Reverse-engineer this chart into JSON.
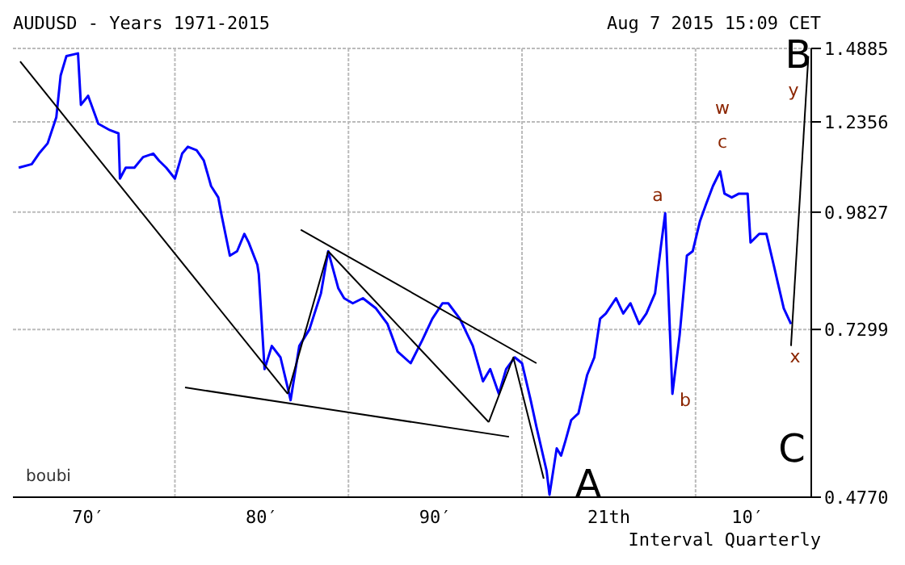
{
  "chart_data": {
    "type": "line",
    "title": "AUDUSD - Years 1971-2015",
    "subtitle": "Aug 7 2015 15:09 CET",
    "log": true,
    "grid": true,
    "marker": "none",
    "line_style": "solid",
    "xlim": [
      "1970-09",
      "2016-09"
    ],
    "xticks": [
      {
        "value": "1975",
        "label": "70′"
      },
      {
        "value": "1980",
        "label": null
      },
      {
        "value": "1985",
        "label": "80′"
      },
      {
        "value": "1990",
        "label": null
      },
      {
        "value": "1995",
        "label": "90′"
      },
      {
        "value": "2000",
        "label": null
      },
      {
        "value": "2005",
        "label": "21th"
      },
      {
        "value": "2010",
        "label": null
      },
      {
        "value": "2013",
        "label": "10′"
      }
    ],
    "ylim": [
      0.477,
      1.4885
    ],
    "yticks": [
      {
        "value": 0.477,
        "label": "0.4770"
      },
      0.7299,
      0.9827,
      1.2356,
      1.4885
    ],
    "series": [
      {
        "color": "#0000ff",
        "x": [
          "1971-01",
          "1971-10",
          "1972-03",
          "1972-09",
          "1973-03",
          "1973-06",
          "1973-10",
          "1974-06",
          "1974-08",
          "1975-01",
          "1975-08",
          "1976-04",
          "1976-10",
          "1976-11",
          "1977-03",
          "1977-09",
          "1978-03",
          "1978-10",
          "1979-02",
          "1979-07",
          "1980-01",
          "1980-06",
          "1980-10",
          "1981-04",
          "1981-09",
          "1982-02",
          "1982-07",
          "1982-09",
          "1983-03",
          "1983-08",
          "1984-01",
          "1984-04",
          "1984-10",
          "1984-11",
          "1985-03",
          "1985-08",
          "1986-02",
          "1986-08",
          "1986-09",
          "1987-03",
          "1987-10",
          "1988-06",
          "1988-11",
          "1989-06",
          "1989-10",
          "1990-04",
          "1990-11",
          "1991-08",
          "1992-04",
          "1992-11",
          "1993-08",
          "1994-04",
          "1994-11",
          "1995-06",
          "1995-10",
          "1996-06",
          "1997-03",
          "1997-10",
          "1998-03",
          "1998-09",
          "1999-02",
          "1999-08",
          "2000-01",
          "2000-07",
          "2000-11",
          "2001-06",
          "2001-08",
          "2002-01",
          "2002-04",
          "2002-07",
          "2002-11",
          "2003-04",
          "2003-10",
          "2004-03",
          "2004-07",
          "2004-11",
          "2005-06",
          "2005-11",
          "2006-04",
          "2006-10",
          "2007-03",
          "2007-09",
          "2008-01",
          "2008-04",
          "2008-09",
          "2009-02",
          "2009-07",
          "2009-11",
          "2010-04",
          "2010-08",
          "2011-01",
          "2011-06",
          "2011-09",
          "2012-02",
          "2012-07",
          "2013-01",
          "2013-03",
          "2013-09",
          "2014-02",
          "2014-07",
          "2014-10",
          "2015-02",
          "2015-07"
        ],
        "values": [
          1.1,
          1.11,
          1.14,
          1.17,
          1.25,
          1.39,
          1.46,
          1.47,
          1.29,
          1.32,
          1.23,
          1.21,
          1.2,
          1.07,
          1.1,
          1.1,
          1.13,
          1.14,
          1.12,
          1.1,
          1.07,
          1.14,
          1.16,
          1.15,
          1.12,
          1.05,
          1.02,
          0.98,
          0.88,
          0.89,
          0.93,
          0.91,
          0.86,
          0.84,
          0.66,
          0.7,
          0.68,
          0.62,
          0.61,
          0.7,
          0.73,
          0.8,
          0.89,
          0.81,
          0.79,
          0.78,
          0.79,
          0.77,
          0.74,
          0.69,
          0.67,
          0.71,
          0.75,
          0.78,
          0.78,
          0.75,
          0.7,
          0.64,
          0.66,
          0.62,
          0.66,
          0.68,
          0.67,
          0.61,
          0.57,
          0.51,
          0.48,
          0.54,
          0.53,
          0.55,
          0.58,
          0.59,
          0.65,
          0.68,
          0.75,
          0.76,
          0.79,
          0.76,
          0.78,
          0.74,
          0.76,
          0.8,
          0.9,
          0.98,
          0.62,
          0.72,
          0.88,
          0.89,
          0.96,
          1.0,
          1.05,
          1.09,
          1.03,
          1.02,
          1.03,
          1.03,
          0.91,
          0.93,
          0.93,
          0.86,
          0.82,
          0.77,
          0.74
        ]
      },
      {
        "color": "#000000",
        "x": [
          "1971-02",
          "1986-07"
        ],
        "values": [
          1.44,
          0.62
        ]
      },
      {
        "color": "#000000",
        "x": [
          "1980-08",
          "1999-04"
        ],
        "values": [
          0.63,
          0.556
        ]
      },
      {
        "color": "#000000",
        "x": [
          "1987-04",
          "2000-11"
        ],
        "values": [
          0.94,
          0.67
        ]
      },
      {
        "color": "#000000",
        "x": [
          "1988-11",
          "1998-02"
        ],
        "values": [
          0.89,
          0.577
        ]
      },
      {
        "color": "#000000",
        "x": [
          "1986-07",
          "1988-11"
        ],
        "values": [
          0.62,
          0.89
        ]
      },
      {
        "color": "#000000",
        "x": [
          "1998-02",
          "1999-07",
          "2001-04"
        ],
        "values": [
          0.577,
          0.68,
          0.5
        ]
      },
      {
        "color": "#000000",
        "x": [
          "2015-07",
          "2016-07"
        ],
        "values": [
          0.7,
          1.46
        ]
      }
    ],
    "annotations": [
      "A",
      "B",
      "C",
      "a",
      "b",
      "c",
      "w",
      "x",
      "y",
      "boubi",
      "Interval Quarterly"
    ]
  }
}
